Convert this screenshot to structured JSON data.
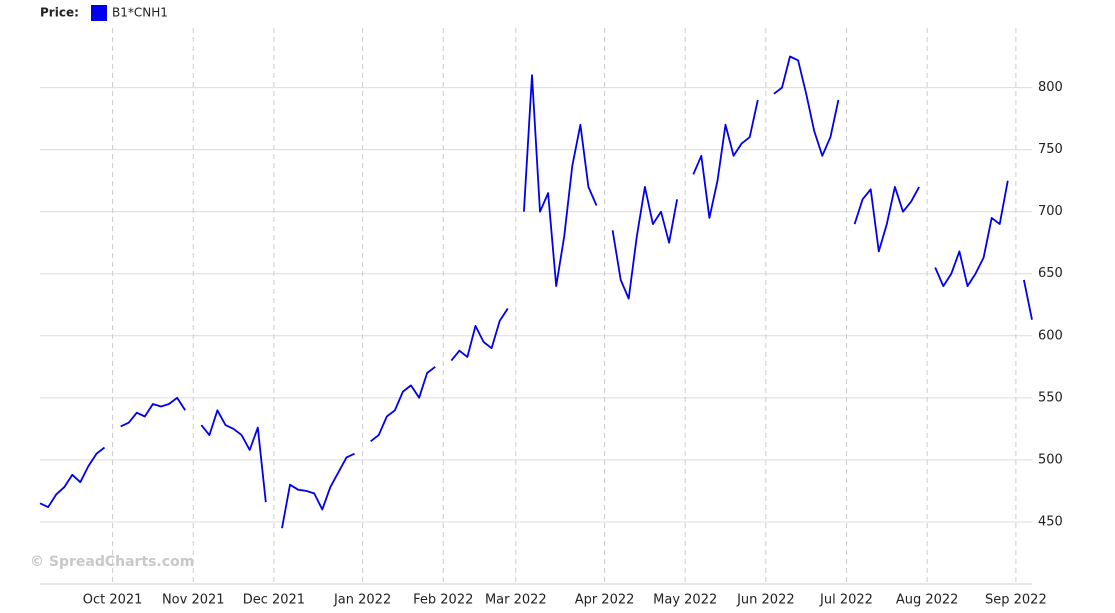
{
  "chart_data": {
    "type": "line",
    "legend_label": "Price:",
    "watermark": "© SpreadCharts.com",
    "categories": [
      null,
      null,
      null,
      null,
      null,
      null,
      null,
      null,
      null,
      "Oct 2021",
      null,
      null,
      null,
      null,
      null,
      null,
      null,
      null,
      null,
      "Nov 2021",
      null,
      null,
      null,
      null,
      null,
      null,
      null,
      null,
      null,
      "Dec 2021",
      null,
      null,
      null,
      null,
      null,
      null,
      null,
      null,
      null,
      null,
      "Jan 2022",
      null,
      null,
      null,
      null,
      null,
      null,
      null,
      null,
      null,
      "Feb 2022",
      null,
      null,
      null,
      null,
      null,
      null,
      null,
      null,
      "Mar 2022",
      null,
      null,
      null,
      null,
      null,
      null,
      null,
      null,
      null,
      null,
      "Apr 2022",
      null,
      null,
      null,
      null,
      null,
      null,
      null,
      null,
      null,
      "May 2022",
      null,
      null,
      null,
      null,
      null,
      null,
      null,
      null,
      null,
      "Jun 2022",
      null,
      null,
      null,
      null,
      null,
      null,
      null,
      null,
      null,
      "Jul 2022",
      null,
      null,
      null,
      null,
      null,
      null,
      null,
      null,
      null,
      "Aug 2022",
      null,
      null,
      null,
      null,
      null,
      null,
      null,
      null,
      null,
      null,
      "Sep 2022",
      null,
      null
    ],
    "series": [
      {
        "name": "B1*CNH1",
        "color": "#0000ee",
        "values": [
          465,
          462,
          472,
          478,
          488,
          482,
          495,
          505,
          510,
          null,
          527,
          530,
          538,
          535,
          545,
          543,
          545,
          550,
          540,
          null,
          528,
          520,
          540,
          528,
          525,
          520,
          508,
          526,
          466,
          null,
          445,
          480,
          476,
          475,
          473,
          460,
          478,
          490,
          502,
          505,
          null,
          515,
          520,
          535,
          540,
          555,
          560,
          550,
          570,
          575,
          null,
          580,
          588,
          583,
          608,
          595,
          590,
          612,
          622,
          null,
          700,
          810,
          700,
          715,
          640,
          680,
          737,
          770,
          720,
          705,
          null,
          685,
          645,
          630,
          680,
          720,
          690,
          700,
          675,
          710,
          null,
          730,
          745,
          695,
          725,
          770,
          745,
          755,
          760,
          790,
          null,
          795,
          800,
          825,
          822,
          795,
          765,
          745,
          760,
          790,
          null,
          690,
          710,
          718,
          668,
          690,
          720,
          700,
          708,
          720,
          null,
          655,
          640,
          650,
          668,
          640,
          650,
          663,
          695,
          690,
          725,
          null,
          645,
          613
        ]
      }
    ],
    "ylim": [
      400,
      848
    ],
    "yticks": [
      450,
      500,
      550,
      600,
      650,
      700,
      750,
      800
    ],
    "grid": true
  }
}
